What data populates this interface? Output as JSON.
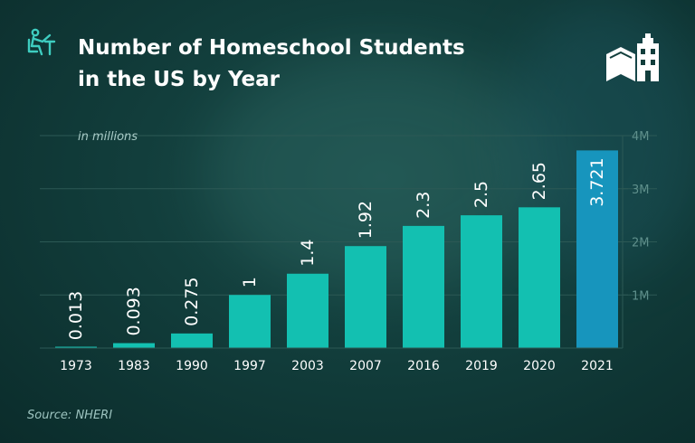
{
  "header": {
    "title_line1": "Number of Homeschool Students",
    "title_line2": "in the US by Year",
    "icon": "student-at-desk-icon",
    "brand_icon": "book-building-logo-icon"
  },
  "source": "Source: NHERI",
  "colors": {
    "background": "#123e3c",
    "bar": "#13c0b1",
    "bar_highlight": "#1795bd",
    "accent_icon": "#3ecdc0",
    "gridline": "#2c5955",
    "tick_text": "#5e8f8b"
  },
  "chart_data": {
    "type": "bar",
    "unit_label": "in millions",
    "categories": [
      "1973",
      "1983",
      "1990",
      "1997",
      "2003",
      "2007",
      "2016",
      "2019",
      "2020",
      "2021"
    ],
    "values": [
      0.013,
      0.093,
      0.275,
      1,
      1.4,
      1.92,
      2.3,
      2.5,
      2.65,
      3.721
    ],
    "value_labels": [
      "0.013",
      "0.093",
      "0.275",
      "1",
      "1.4",
      "1.92",
      "2.3",
      "2.5",
      "2.65",
      "3.721"
    ],
    "highlighted_category": "2021",
    "ylim": [
      0,
      4
    ],
    "yticks": [
      {
        "value": 1,
        "label": "1M"
      },
      {
        "value": 2,
        "label": "2M"
      },
      {
        "value": 3,
        "label": "3M"
      },
      {
        "value": 4,
        "label": "4M"
      }
    ],
    "grid": true
  }
}
